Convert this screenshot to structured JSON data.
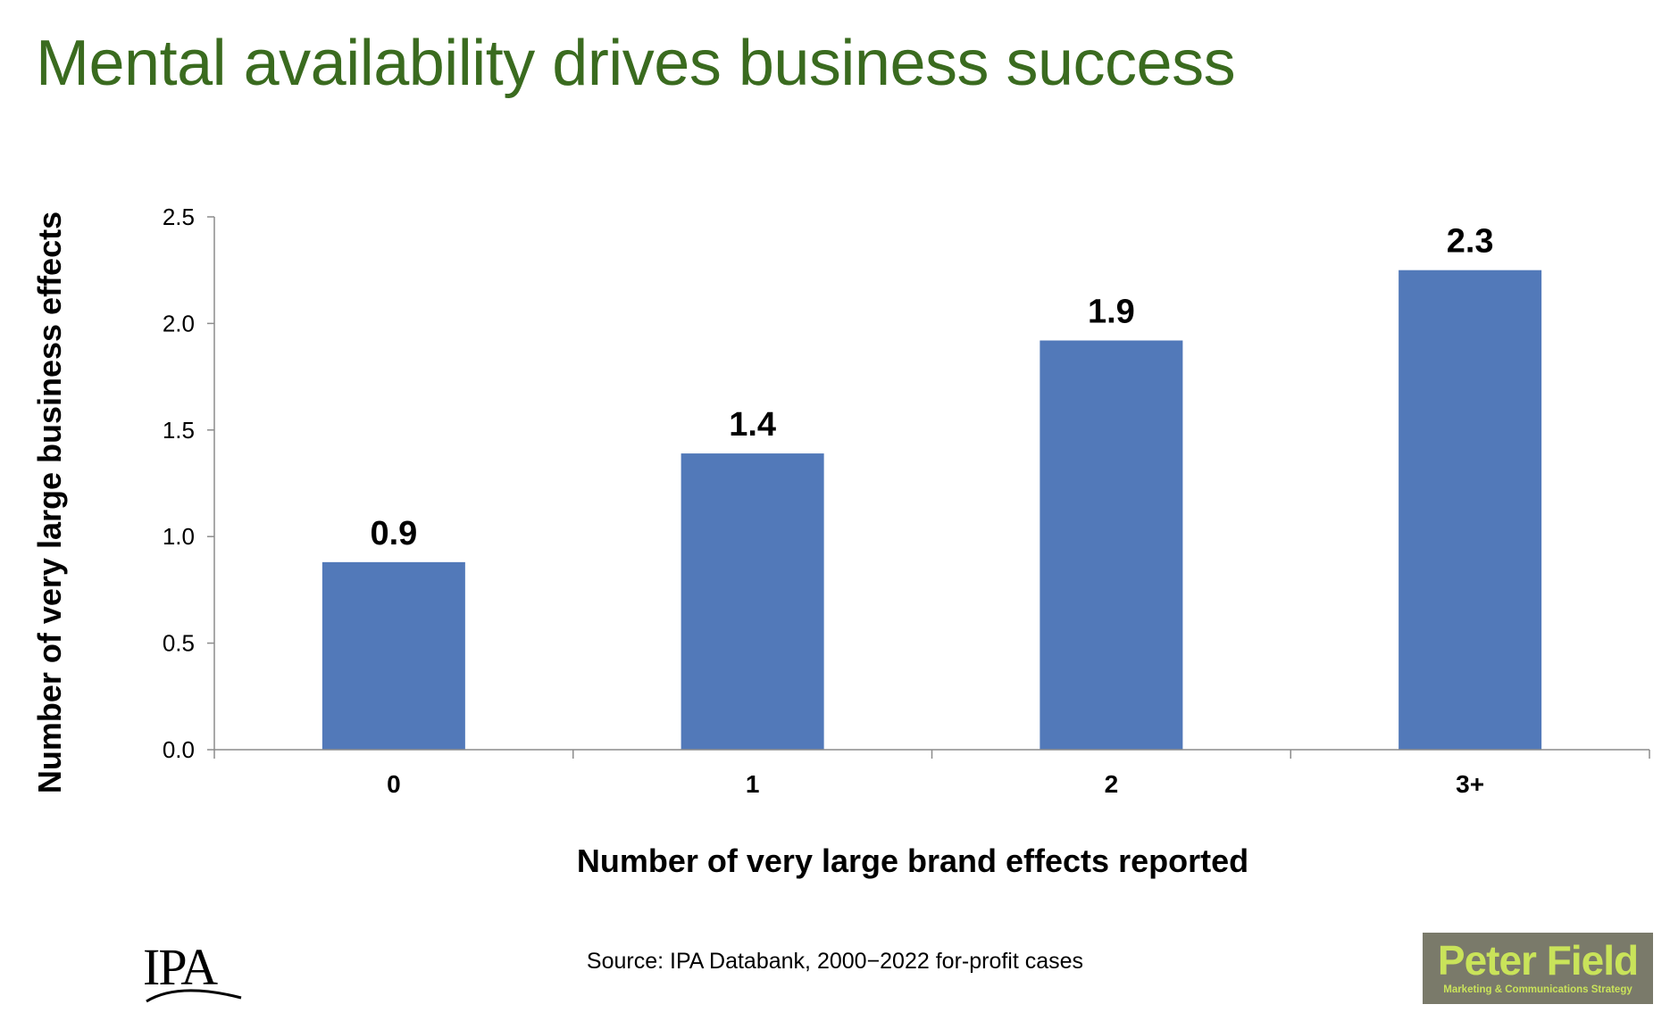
{
  "slide": {
    "title": "Mental availability drives business success",
    "source": "Source: IPA Databank, 2000−2022 for-profit cases",
    "title_color": "#3a6b1f"
  },
  "logos": {
    "left": {
      "text": "IPA",
      "icon": "ipa-logo"
    },
    "right": {
      "name": "Peter Field",
      "tagline": "Marketing & Communications Strategy",
      "icon": "peter-field-logo"
    }
  },
  "chart_data": {
    "type": "bar",
    "categories": [
      "0",
      "1",
      "2",
      "3+"
    ],
    "values": [
      0.88,
      1.39,
      1.92,
      2.25
    ],
    "data_labels": [
      "0.9",
      "1.4",
      "1.9",
      "2.3"
    ],
    "yticks": [
      "0.0",
      "0.5",
      "1.0",
      "1.5",
      "2.0",
      "2.5"
    ],
    "ylim": [
      0,
      2.5
    ],
    "xlabel": "Number of very large brand effects reported",
    "ylabel": "Number of very large business effects",
    "bar_color": "#5279b9",
    "grid": false,
    "legend": "none"
  }
}
